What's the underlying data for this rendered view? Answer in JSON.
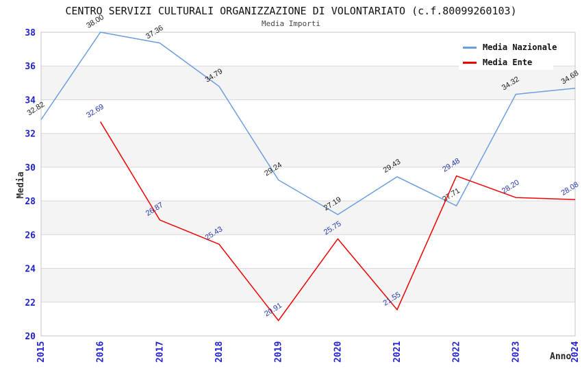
{
  "chart_data": {
    "type": "line",
    "title": "CENTRO SERVIZI CULTURALI ORGANIZZAZIONE DI VOLONTARIATO (c.f.80099260103)",
    "subtitle": "Media Importi",
    "xlabel": "Anno",
    "ylabel": "Media",
    "x": [
      "2015",
      "2016",
      "2017",
      "2018",
      "2019",
      "2020",
      "2021",
      "2022",
      "2023",
      "2024"
    ],
    "ylim": [
      20,
      38
    ],
    "ytick_step": 2,
    "grid": true,
    "legend_position": "top-right",
    "plot_bands_alternating": [
      "#ffffff",
      "#f4f4f4"
    ],
    "gridline_color": "#d9d9d9",
    "plot_border_color": "#c6c6c6",
    "axis_tick_color": "#2222cc",
    "series": [
      {
        "name": "Media Nazionale",
        "color": "#6b9ddf",
        "label_color": "#1a1a1a",
        "values": [
          32.82,
          38.0,
          37.36,
          34.79,
          29.24,
          27.19,
          29.43,
          27.71,
          34.32,
          34.68
        ]
      },
      {
        "name": "Media Ente",
        "color": "#ee0000",
        "label_color": "#2233aa",
        "values": [
          null,
          32.69,
          26.87,
          25.43,
          20.91,
          25.75,
          21.55,
          29.48,
          28.2,
          28.08
        ]
      }
    ]
  }
}
